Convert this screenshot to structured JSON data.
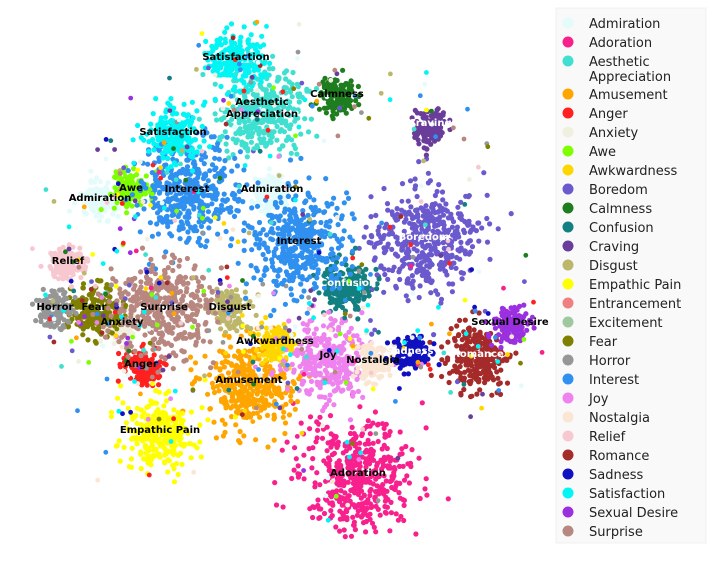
{
  "chart_data": {
    "type": "scatter",
    "title": "",
    "legend_position": "right",
    "series": [
      {
        "name": "Admiration",
        "color": "#e4fbfb",
        "cluster": [
          {
            "label": "Admiration",
            "label_color": "black",
            "x": 272,
            "y": 192
          },
          {
            "label": "Admiration",
            "label_color": "black",
            "x": 100,
            "y": 201
          }
        ]
      },
      {
        "name": "Adoration",
        "color": "#f8208c",
        "cluster": [
          {
            "label": "Adoration",
            "label_color": "black",
            "x": 358,
            "y": 476
          }
        ]
      },
      {
        "name": "Aesthetic Appreciation",
        "color": "#40e0d0",
        "cluster": [
          {
            "label": "Aesthetic Appreciation",
            "label_color": "black",
            "x": 262,
            "y": 111
          }
        ]
      },
      {
        "name": "Amusement",
        "color": "#ffa500",
        "cluster": [
          {
            "label": "Amusement",
            "label_color": "black",
            "x": 249,
            "y": 383
          }
        ]
      },
      {
        "name": "Anger",
        "color": "#ff2020",
        "cluster": [
          {
            "label": "Anger",
            "label_color": "black",
            "x": 141,
            "y": 367
          }
        ]
      },
      {
        "name": "Anxiety",
        "color": "#f0f0e0",
        "cluster": [
          {
            "label": "Anxiety",
            "label_color": "black",
            "x": 122,
            "y": 325
          }
        ]
      },
      {
        "name": "Awe",
        "color": "#7fff00",
        "cluster": [
          {
            "label": "Awe",
            "label_color": "black",
            "x": 131,
            "y": 191
          }
        ]
      },
      {
        "name": "Awkwardness",
        "color": "#ffd700",
        "cluster": [
          {
            "label": "Awkwardness",
            "label_color": "black",
            "x": 275,
            "y": 344
          }
        ]
      },
      {
        "name": "Boredom",
        "color": "#6a5acd",
        "cluster": [
          {
            "label": "Boredom",
            "label_color": "white",
            "x": 424,
            "y": 240
          }
        ]
      },
      {
        "name": "Calmness",
        "color": "#1e7d1e",
        "cluster": [
          {
            "label": "Calmness",
            "label_color": "black",
            "x": 337,
            "y": 97
          }
        ]
      },
      {
        "name": "Confusion",
        "color": "#128080",
        "cluster": [
          {
            "label": "Confusion",
            "label_color": "white",
            "x": 348,
            "y": 286
          }
        ]
      },
      {
        "name": "Craving",
        "color": "#6a3d9a",
        "cluster": [
          {
            "label": "Craving",
            "label_color": "white",
            "x": 430,
            "y": 126
          }
        ]
      },
      {
        "name": "Disgust",
        "color": "#bdb76b",
        "cluster": [
          {
            "label": "Disgust",
            "label_color": "black",
            "x": 230,
            "y": 310
          }
        ]
      },
      {
        "name": "Empathic Pain",
        "color": "#ffff00",
        "cluster": [
          {
            "label": "Empathic Pain",
            "label_color": "black",
            "x": 160,
            "y": 433
          }
        ]
      },
      {
        "name": "Entrancement",
        "color": "#f08080",
        "cluster": []
      },
      {
        "name": "Excitement",
        "color": "#a0c8a0",
        "cluster": []
      },
      {
        "name": "Fear",
        "color": "#808000",
        "cluster": [
          {
            "label": "Fear",
            "label_color": "black",
            "x": 94,
            "y": 310
          }
        ]
      },
      {
        "name": "Horror",
        "color": "#969696",
        "cluster": [
          {
            "label": "Horror",
            "label_color": "black",
            "x": 55,
            "y": 310
          }
        ]
      },
      {
        "name": "Interest",
        "color": "#3090f0",
        "cluster": [
          {
            "label": "Interest",
            "label_color": "black",
            "x": 187,
            "y": 192
          },
          {
            "label": "Interest",
            "label_color": "black",
            "x": 299,
            "y": 244
          }
        ]
      },
      {
        "name": "Joy",
        "color": "#ee82ee",
        "cluster": [
          {
            "label": "Joy",
            "label_color": "black",
            "x": 328,
            "y": 358
          }
        ]
      },
      {
        "name": "Nostalgia",
        "color": "#fae6d2",
        "cluster": [
          {
            "label": "Nostalgia",
            "label_color": "black",
            "x": 373,
            "y": 363
          }
        ]
      },
      {
        "name": "Relief",
        "color": "#f8c8d0",
        "cluster": [
          {
            "label": "Relief",
            "label_color": "black",
            "x": 68,
            "y": 264
          }
        ]
      },
      {
        "name": "Romance",
        "color": "#a52a2a",
        "cluster": [
          {
            "label": "Romance",
            "label_color": "white",
            "x": 478,
            "y": 357
          }
        ]
      },
      {
        "name": "Sadness",
        "color": "#1010c0",
        "cluster": [
          {
            "label": "Sadness",
            "label_color": "white",
            "x": 410,
            "y": 354
          }
        ]
      },
      {
        "name": "Satisfaction",
        "color": "#00f5f5",
        "cluster": [
          {
            "label": "Satisfaction",
            "label_color": "black",
            "x": 236,
            "y": 60
          },
          {
            "label": "Satisfaction",
            "label_color": "black",
            "x": 173,
            "y": 135
          }
        ]
      },
      {
        "name": "Sexual Desire",
        "color": "#9b30e0",
        "cluster": [
          {
            "label": "Sexual Desire",
            "label_color": "black",
            "x": 510,
            "y": 325
          }
        ]
      },
      {
        "name": "Surprise",
        "color": "#b88880",
        "cluster": [
          {
            "label": "Surprise",
            "label_color": "black",
            "x": 164,
            "y": 310
          }
        ]
      }
    ]
  }
}
